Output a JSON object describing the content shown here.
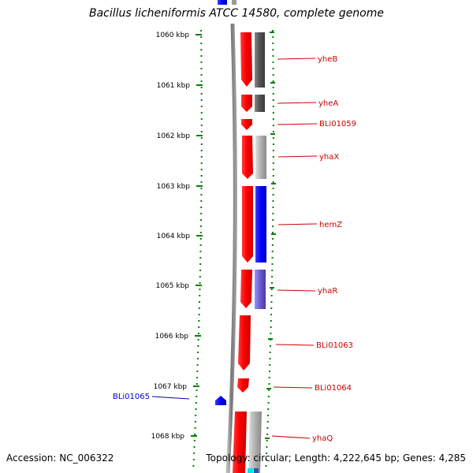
{
  "title": "Bacillus licheniformis ATCC 14580, complete genome",
  "footer": {
    "accession": "Accession: NC_006322",
    "topology": "Topology: circular; Length: 4,222,645 bp; Genes: 4,285"
  },
  "ticks": [
    {
      "label": "1060 kbp"
    },
    {
      "label": "1061 kbp"
    },
    {
      "label": "1062 kbp"
    },
    {
      "label": "1063 kbp"
    },
    {
      "label": "1064 kbp"
    },
    {
      "label": "1065 kbp"
    },
    {
      "label": "1066 kbp"
    },
    {
      "label": "1067 kbp"
    },
    {
      "label": "1068 kbp"
    }
  ],
  "genes": [
    {
      "name": "yheB",
      "strand": "+",
      "color": "#cc0000"
    },
    {
      "name": "yheA",
      "strand": "+",
      "color": "#cc0000"
    },
    {
      "name": "BLi01059",
      "strand": "+",
      "color": "#cc0000"
    },
    {
      "name": "yhaX",
      "strand": "+",
      "color": "#cc0000"
    },
    {
      "name": "hemZ",
      "strand": "+",
      "color": "#cc0000"
    },
    {
      "name": "yhaR",
      "strand": "+",
      "color": "#cc0000"
    },
    {
      "name": "BLi01063",
      "strand": "+",
      "color": "#cc0000"
    },
    {
      "name": "BLi01064",
      "strand": "+",
      "color": "#cc0000"
    },
    {
      "name": "BLi01065",
      "strand": "-",
      "color": "#0000cc"
    },
    {
      "name": "yhaQ",
      "strand": "+",
      "color": "#cc0000"
    }
  ],
  "colors": {
    "forward_gene": "#ff0000",
    "reverse_gene": "#0000ff",
    "tick": "#008000",
    "backbone": "#808080",
    "cog_dark": "#555555",
    "cog_light": "#aaaaaa",
    "cog_blue": "#0000ff",
    "cog_violet": "#6a5acd",
    "cog_cyan": "#00e5ee"
  }
}
